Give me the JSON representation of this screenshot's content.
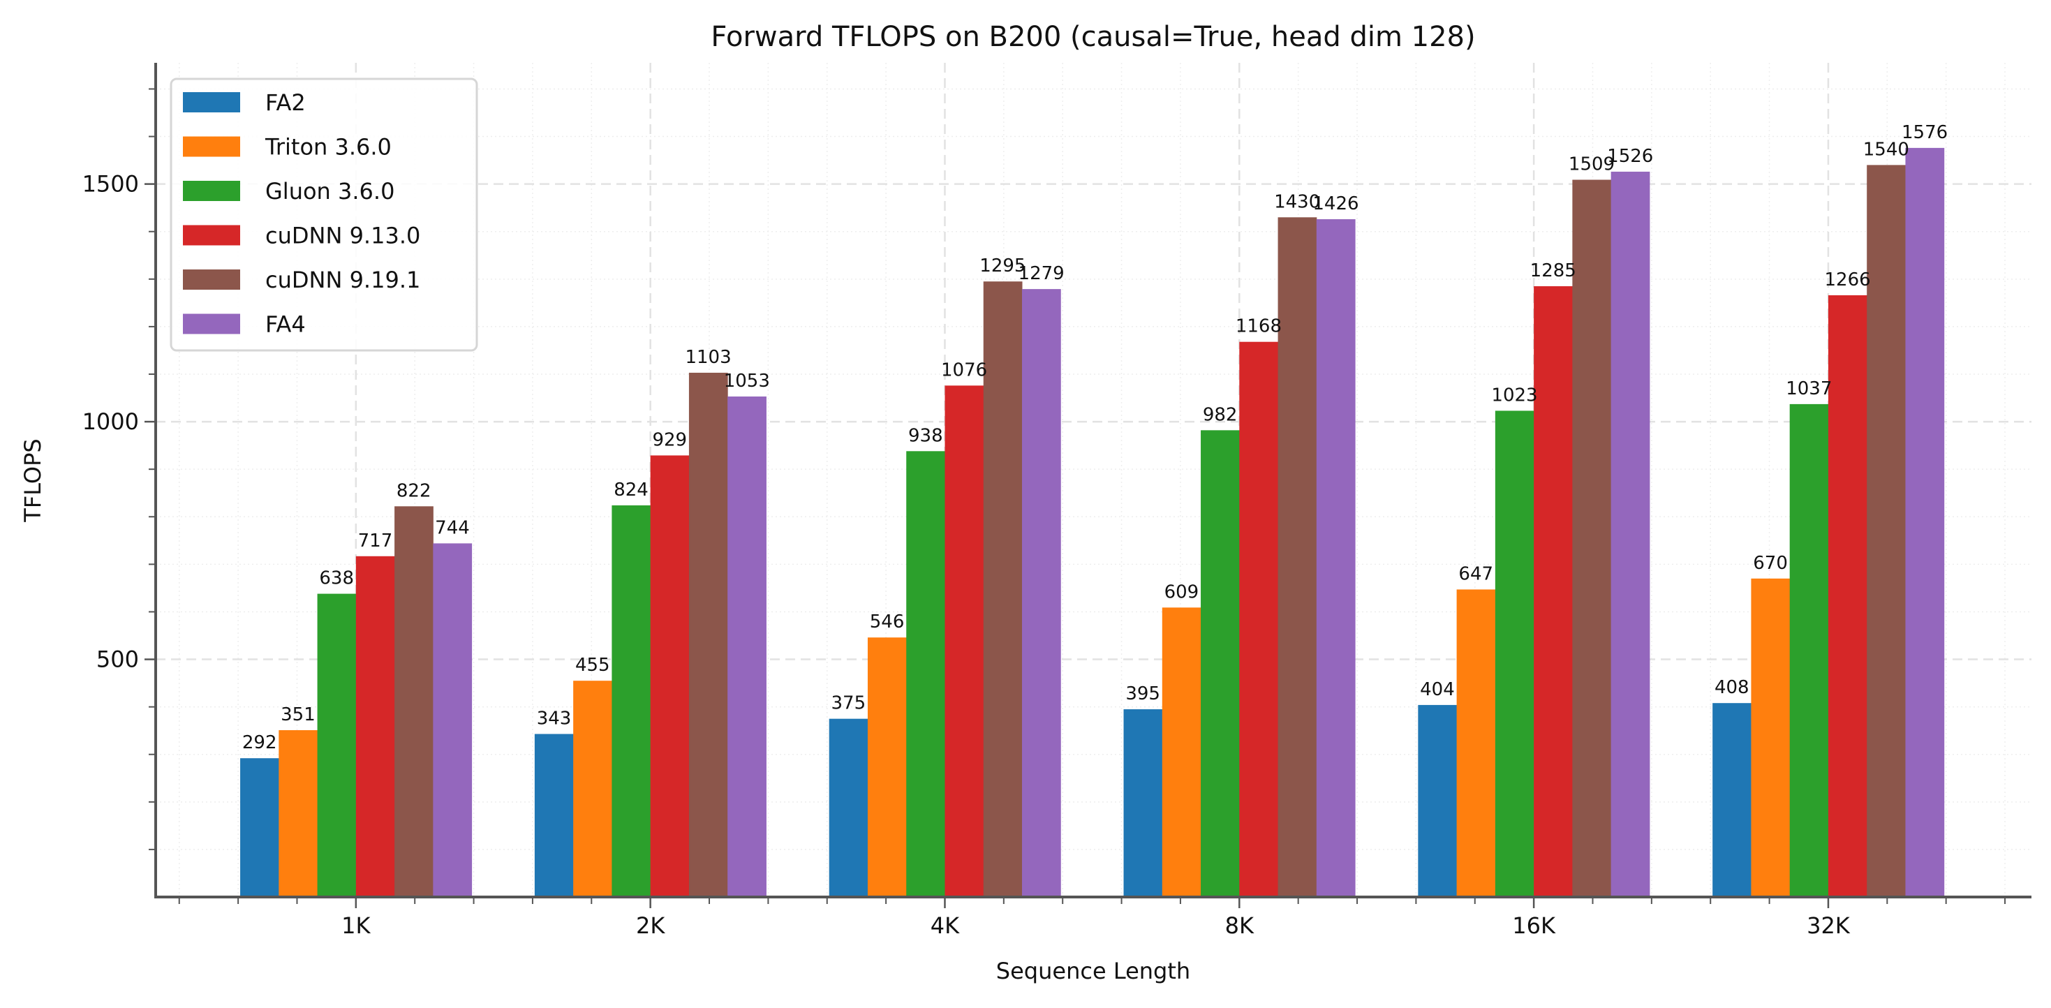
{
  "chart_data": {
    "type": "bar",
    "title": "Forward TFLOPS on B200 (causal=True, head dim 128)",
    "xlabel": "Sequence Length",
    "ylabel": "TFLOPS",
    "categories": [
      "1K",
      "2K",
      "4K",
      "8K",
      "16K",
      "32K"
    ],
    "ylim": [
      0,
      1755
    ],
    "yticks": [
      500,
      1000,
      1500
    ],
    "y_minor_tick_step": 100,
    "grid": true,
    "legend_position": "top-left",
    "data_labels": true,
    "series": [
      {
        "name": "FA2",
        "color": "#1f77b4",
        "values": [
          292,
          343,
          375,
          395,
          404,
          408
        ]
      },
      {
        "name": "Triton 3.6.0",
        "color": "#ff7f0e",
        "values": [
          351,
          455,
          546,
          609,
          647,
          670
        ]
      },
      {
        "name": "Gluon 3.6.0",
        "color": "#2ca02c",
        "values": [
          638,
          824,
          938,
          982,
          1023,
          1037
        ]
      },
      {
        "name": "cuDNN 9.13.0",
        "color": "#d62728",
        "values": [
          717,
          929,
          1076,
          1168,
          1285,
          1266
        ]
      },
      {
        "name": "cuDNN 9.19.1",
        "color": "#8c564b",
        "values": [
          822,
          1103,
          1295,
          1430,
          1509,
          1540
        ]
      },
      {
        "name": "FA4",
        "color": "#9467bd",
        "values": [
          744,
          1053,
          1279,
          1426,
          1526,
          1576
        ]
      }
    ]
  }
}
